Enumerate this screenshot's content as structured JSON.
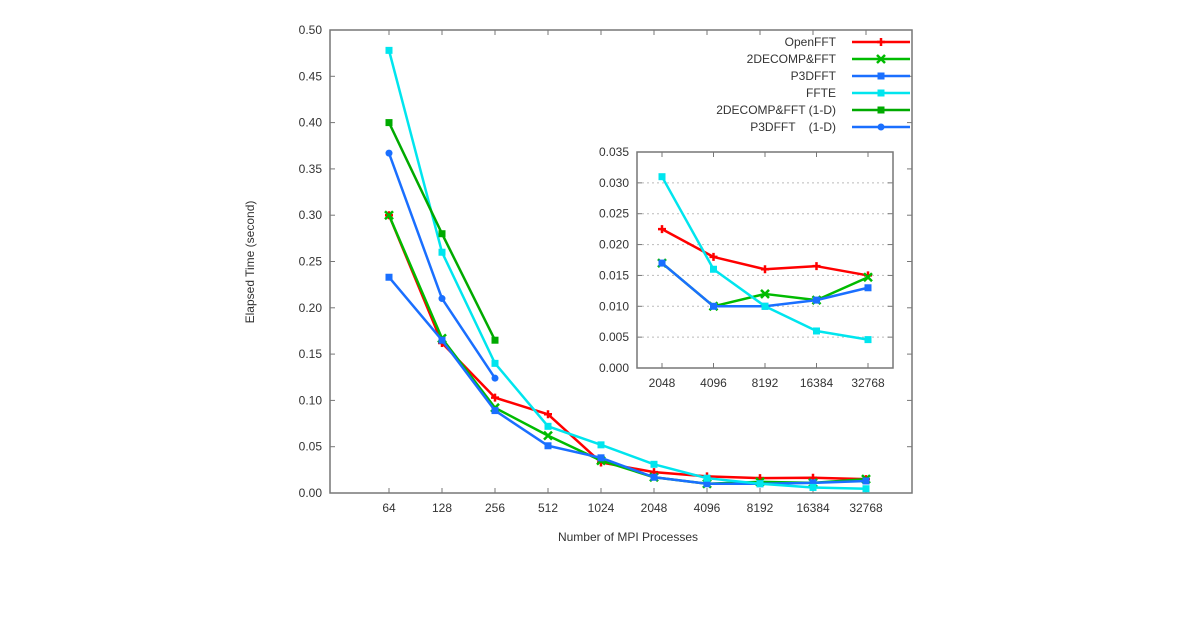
{
  "chart_data": [
    {
      "type": "line",
      "title": "",
      "xlabel": "Number of MPI Processes",
      "ylabel": "Elapsed Time (second)",
      "categories": [
        "64",
        "128",
        "256",
        "512",
        "1024",
        "2048",
        "4096",
        "8192",
        "16384",
        "32768"
      ],
      "ylim": [
        0,
        0.5
      ],
      "yticks": [
        "0.00",
        "0.05",
        "0.10",
        "0.15",
        "0.20",
        "0.25",
        "0.30",
        "0.35",
        "0.40",
        "0.45",
        "0.50"
      ],
      "grid": false,
      "legend": "top-right",
      "series": [
        {
          "name": "OpenFFT",
          "color": "#ff0000",
          "marker": "plus",
          "values": [
            0.3,
            0.162,
            0.103,
            0.085,
            0.033,
            0.0225,
            0.018,
            0.016,
            0.0165,
            0.015
          ]
        },
        {
          "name": "2DECOMP&FFT",
          "color": "#00bb00",
          "marker": "x",
          "values": [
            0.3,
            0.167,
            0.092,
            0.062,
            0.035,
            0.017,
            0.01,
            0.012,
            0.011,
            0.015
          ]
        },
        {
          "name": "P3DFFT",
          "color": "#1a6fff",
          "marker": "square",
          "values": [
            0.233,
            0.165,
            0.089,
            0.051,
            0.038,
            0.017,
            0.01,
            0.01,
            0.011,
            0.013
          ]
        },
        {
          "name": "FFTE",
          "color": "#00e5ee",
          "marker": "square",
          "values": [
            0.478,
            0.26,
            0.14,
            0.072,
            0.052,
            0.031,
            0.016,
            0.01,
            0.006,
            0.0046
          ]
        },
        {
          "name": "2DECOMP&FFT (1-D)",
          "color": "#00aa00",
          "marker": "square",
          "values": [
            0.4,
            0.28,
            0.165,
            null,
            null,
            null,
            null,
            null,
            null,
            null
          ]
        },
        {
          "name": "P3DFFT    (1-D)",
          "color": "#1a6fff",
          "marker": "circle",
          "values": [
            0.367,
            0.21,
            0.124,
            null,
            null,
            null,
            null,
            null,
            null,
            null
          ]
        }
      ]
    },
    {
      "type": "line",
      "title": "",
      "categories": [
        "2048",
        "4096",
        "8192",
        "16384",
        "32768"
      ],
      "ylim": [
        0,
        0.035
      ],
      "yticks": [
        "0.000",
        "0.005",
        "0.010",
        "0.015",
        "0.020",
        "0.025",
        "0.030",
        "0.035"
      ],
      "grid": true,
      "series": [
        {
          "color": "#ff0000",
          "marker": "plus",
          "values": [
            0.0225,
            0.018,
            0.016,
            0.0165,
            0.015
          ]
        },
        {
          "color": "#00bb00",
          "marker": "x",
          "values": [
            0.017,
            0.01,
            0.012,
            0.011,
            0.0147
          ]
        },
        {
          "color": "#1a6fff",
          "marker": "square",
          "values": [
            0.017,
            0.01,
            0.01,
            0.011,
            0.013
          ]
        },
        {
          "color": "#00e5ee",
          "marker": "square",
          "values": [
            0.031,
            0.016,
            0.01,
            0.006,
            0.0046
          ]
        }
      ]
    }
  ]
}
